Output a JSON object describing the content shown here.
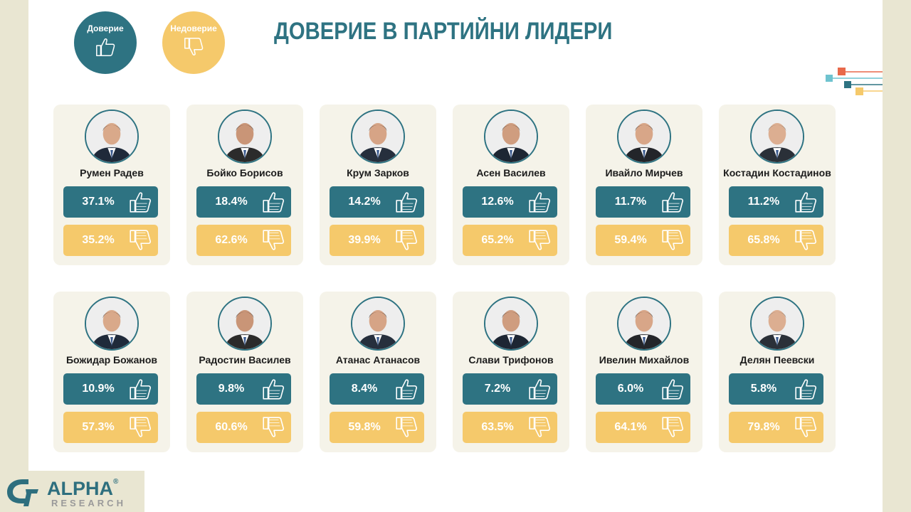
{
  "title": "ДОВЕРИЕ В ПАРТИЙНИ ЛИДЕРИ",
  "legend": {
    "trust": "Доверие",
    "distrust": "Недоверие"
  },
  "colors": {
    "trust": "#2e7382",
    "distrust": "#f5c96b",
    "card": "#f5f3e9",
    "background": "#e9e6d2"
  },
  "icons": {
    "trust": "thumbs-up-icon",
    "distrust": "thumbs-down-icon"
  },
  "logo": {
    "word": "ALPHA",
    "registered": "®",
    "sub": "RESEARCH"
  },
  "chart_data": {
    "type": "table",
    "title": "ДОВЕРИЕ В ПАРТИЙНИ ЛИДЕРИ",
    "series_names": [
      "Доверие",
      "Недоверие"
    ],
    "leaders": [
      {
        "name": "Румен Радев",
        "trust": "37.1%",
        "distrust": "35.2%",
        "trust_value": 37.1,
        "distrust_value": 35.2
      },
      {
        "name": "Бойко Борисов",
        "trust": "18.4%",
        "distrust": "62.6%",
        "trust_value": 18.4,
        "distrust_value": 62.6
      },
      {
        "name": "Крум Зарков",
        "trust": "14.2%",
        "distrust": "39.9%",
        "trust_value": 14.2,
        "distrust_value": 39.9
      },
      {
        "name": "Асен Василев",
        "trust": "12.6%",
        "distrust": "65.2%",
        "trust_value": 12.6,
        "distrust_value": 65.2
      },
      {
        "name": "Ивайло Мирчев",
        "trust": "11.7%",
        "distrust": "59.4%",
        "trust_value": 11.7,
        "distrust_value": 59.4
      },
      {
        "name": "Костадин Костадинов",
        "trust": "11.2%",
        "distrust": "65.8%",
        "trust_value": 11.2,
        "distrust_value": 65.8
      },
      {
        "name": "Божидар Божанов",
        "trust": "10.9%",
        "distrust": "57.3%",
        "trust_value": 10.9,
        "distrust_value": 57.3
      },
      {
        "name": "Радостин Василев",
        "trust": "9.8%",
        "distrust": "60.6%",
        "trust_value": 9.8,
        "distrust_value": 60.6
      },
      {
        "name": "Атанас Атанасов",
        "trust": "8.4%",
        "distrust": "59.8%",
        "trust_value": 8.4,
        "distrust_value": 59.8
      },
      {
        "name": "Слави Трифонов",
        "trust": "7.2%",
        "distrust": "63.5%",
        "trust_value": 7.2,
        "distrust_value": 63.5
      },
      {
        "name": "Ивелин Михайлов",
        "trust": "6.0%",
        "distrust": "64.1%",
        "trust_value": 6.0,
        "distrust_value": 64.1
      },
      {
        "name": "Делян Пеевски",
        "trust": "5.8%",
        "distrust": "79.8%",
        "trust_value": 5.8,
        "distrust_value": 79.8
      }
    ]
  }
}
